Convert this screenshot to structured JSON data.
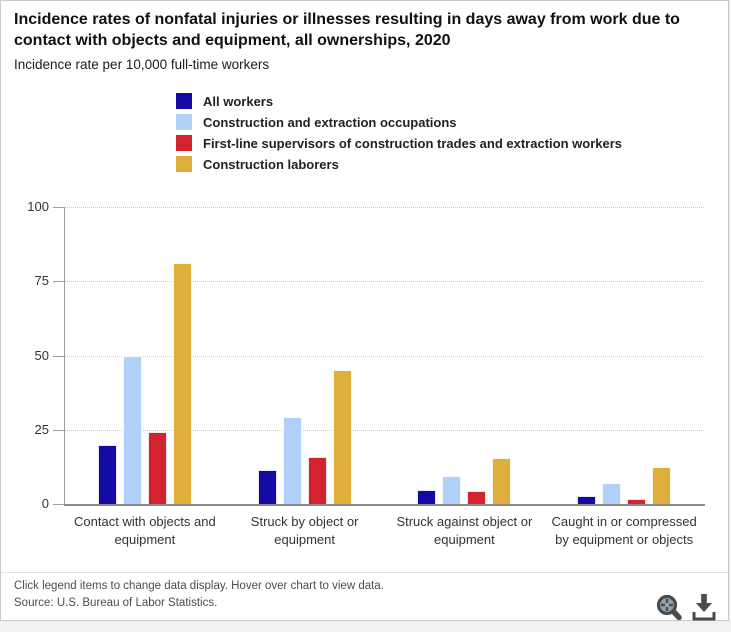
{
  "header": {
    "title": "Incidence rates of nonfatal injuries or illnesses resulting in days away from work due to contact with objects and equipment, all ownerships, 2020",
    "subtitle": "Incidence rate per 10,000 full-time workers"
  },
  "chart_data": {
    "type": "bar",
    "title": "Incidence rates of nonfatal injuries or illnesses resulting in days away from work due to contact with objects and equipment, all ownerships, 2020",
    "ylabel": "Incidence rate per 10,000 full-time workers",
    "categories": [
      "Contact with objects and equipment",
      "Struck by object or equipment",
      "Struck against object or equipment",
      "Caught in or compressed by equipment or objects"
    ],
    "series": [
      {
        "name": "All workers",
        "color": "#120aa3",
        "values": [
          20.0,
          11.4,
          4.7,
          2.8
        ]
      },
      {
        "name": "Construction and extraction occupations",
        "color": "#b0d1fa",
        "values": [
          49.8,
          29.4,
          9.4,
          7.1
        ]
      },
      {
        "name": "First-line supervisors of construction trades and extraction workers",
        "color": "#d2232e",
        "values": [
          24.4,
          15.7,
          4.3,
          1.6
        ]
      },
      {
        "name": "Construction laborers",
        "color": "#dfaf3c",
        "values": [
          81.0,
          45.1,
          15.4,
          12.4
        ]
      }
    ],
    "ylim": [
      0,
      100
    ],
    "yticks": [
      0,
      25,
      50,
      75,
      100
    ],
    "grid": "horizontal dotted",
    "legend_position": "top"
  },
  "footer": {
    "note": "Click legend items to change data display. Hover over chart to view data.",
    "source": "Source: U.S. Bureau of Labor Statistics.",
    "icons": [
      "zoom-icon",
      "download-icon"
    ]
  }
}
